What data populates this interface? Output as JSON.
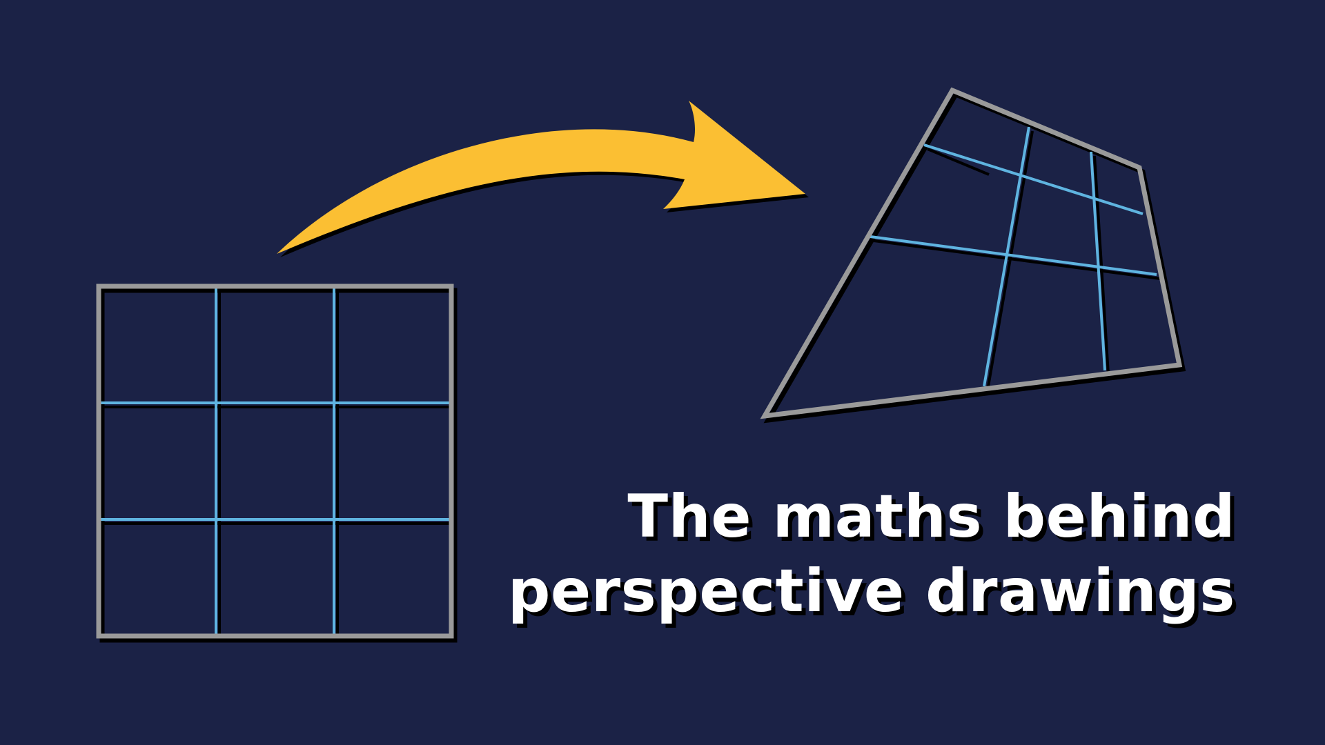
{
  "title": {
    "line1": "The maths behind",
    "line2": "perspective drawings"
  },
  "colors": {
    "background": "#1b2246",
    "frame": "#9a9a9a",
    "grid_lines": "#5fb4e0",
    "arrow": "#fbbf33",
    "shadow": "#000000",
    "text": "#ffffff"
  },
  "icons": {
    "source": "square-grid-3x3",
    "transform": "curved-arrow",
    "target": "perspective-grid-3x3"
  }
}
